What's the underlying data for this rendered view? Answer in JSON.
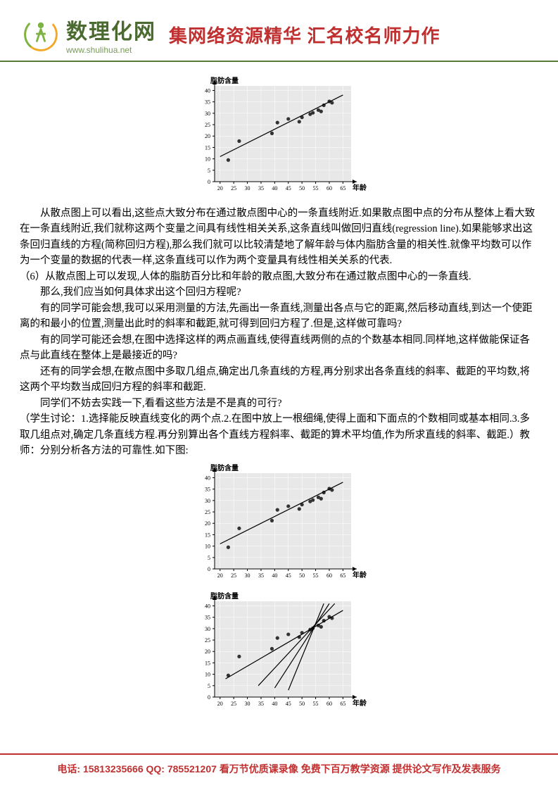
{
  "header": {
    "logo_cn": "数理化网",
    "logo_url": "www.shulihua.net",
    "slogan": "集网络资源精华 汇名校名师力作"
  },
  "chart_common": {
    "y_label": "脂肪含量",
    "x_label": "年龄",
    "y_ticks": [
      "0",
      "5",
      "10",
      "15",
      "20",
      "25",
      "30",
      "35",
      "40"
    ],
    "x_ticks": [
      "20",
      "25",
      "30",
      "35",
      "40",
      "45",
      "50",
      "55",
      "60",
      "65"
    ],
    "bg_color": "#e8e8e8",
    "grid_color": "#ffffff",
    "axis_color": "#000000",
    "point_color": "#333333",
    "line_color": "#000000",
    "label_fontsize": 10,
    "tick_fontsize": 8,
    "points": [
      {
        "x": 23,
        "y": 9.5
      },
      {
        "x": 27,
        "y": 17.8
      },
      {
        "x": 39,
        "y": 21.2
      },
      {
        "x": 41,
        "y": 25.9
      },
      {
        "x": 45,
        "y": 27.5
      },
      {
        "x": 49,
        "y": 26.3
      },
      {
        "x": 50,
        "y": 28.2
      },
      {
        "x": 53,
        "y": 29.6
      },
      {
        "x": 54,
        "y": 30.2
      },
      {
        "x": 56,
        "y": 31.4
      },
      {
        "x": 57,
        "y": 30.8
      },
      {
        "x": 58,
        "y": 33.5
      },
      {
        "x": 60,
        "y": 35.2
      },
      {
        "x": 61,
        "y": 34.6
      }
    ],
    "regression_line": {
      "x1": 20,
      "y1": 11,
      "x2": 65,
      "y2": 38
    },
    "xlim": [
      18,
      68
    ],
    "ylim": [
      0,
      42
    ]
  },
  "chart3_lines": [
    {
      "x1": 22,
      "y1": 8,
      "x2": 65,
      "y2": 38
    },
    {
      "x1": 34,
      "y1": 5,
      "x2": 62,
      "y2": 41
    },
    {
      "x1": 40,
      "y1": 4,
      "x2": 60,
      "y2": 41
    },
    {
      "x1": 45,
      "y1": 3,
      "x2": 58,
      "y2": 41
    }
  ],
  "body": {
    "p1": "从散点图上可以看出,这些点大致分布在通过散点图中心的一条直线附近.如果散点图中点的分布从整体上看大致在一条直线附近,我们就称这两个变量之间具有线性相关关系,这条直线叫做回归直线(regression line).如果能够求出这条回归直线的方程(简称回归方程),那么我们就可以比较清楚地了解年龄与体内脂肪含量的相关性.就像平均数可以作为一个变量的数据的代表一样,这条直线可以作为两个变量具有线性相关关系的代表.",
    "p2": "（6）从散点图上可以发现,人体的脂肪百分比和年龄的散点图,大致分布在通过散点图中心的一条直线.",
    "p3": "那么,我们应当如何具体求出这个回归方程呢?",
    "p4": "有的同学可能会想,我可以采用测量的方法,先画出一条直线,测量出各点与它的距离,然后移动直线,到达一个使距离的和最小的位置,测量出此时的斜率和截距,就可得到回归方程了.但是,这样做可靠吗?",
    "p5": "有的同学可能还会想,在图中选择这样的两点画直线,使得直线两侧的点的个数基本相同.同样地,这样做能保证各点与此直线在整体上是最接近的吗?",
    "p6": "还有的同学会想,在散点图中多取几组点,确定出几条直线的方程,再分别求出各条直线的斜率、截距的平均数,将这两个平均数当成回归方程的斜率和截距.",
    "p7": "同学们不妨去实践一下,看看这些方法是不是真的可行?",
    "p8": "（学生讨论：1.选择能反映直线变化的两个点.2.在图中放上一根细绳,使得上面和下面点的个数相同或基本相同.3.多取几组点对,确定几条直线方程.再分别算出各个直线方程斜率、截距的算术平均值,作为所求直线的斜率、截距.）教师：分别分析各方法的可靠性.如下图:"
  },
  "footer": {
    "contact_label": "电话:",
    "phone": "15813235666",
    "qq_label": "QQ:",
    "qq": "785521207",
    "tail": "看万节优质课录像 免费下百万教学资源 提供论文写作及发表服务"
  }
}
